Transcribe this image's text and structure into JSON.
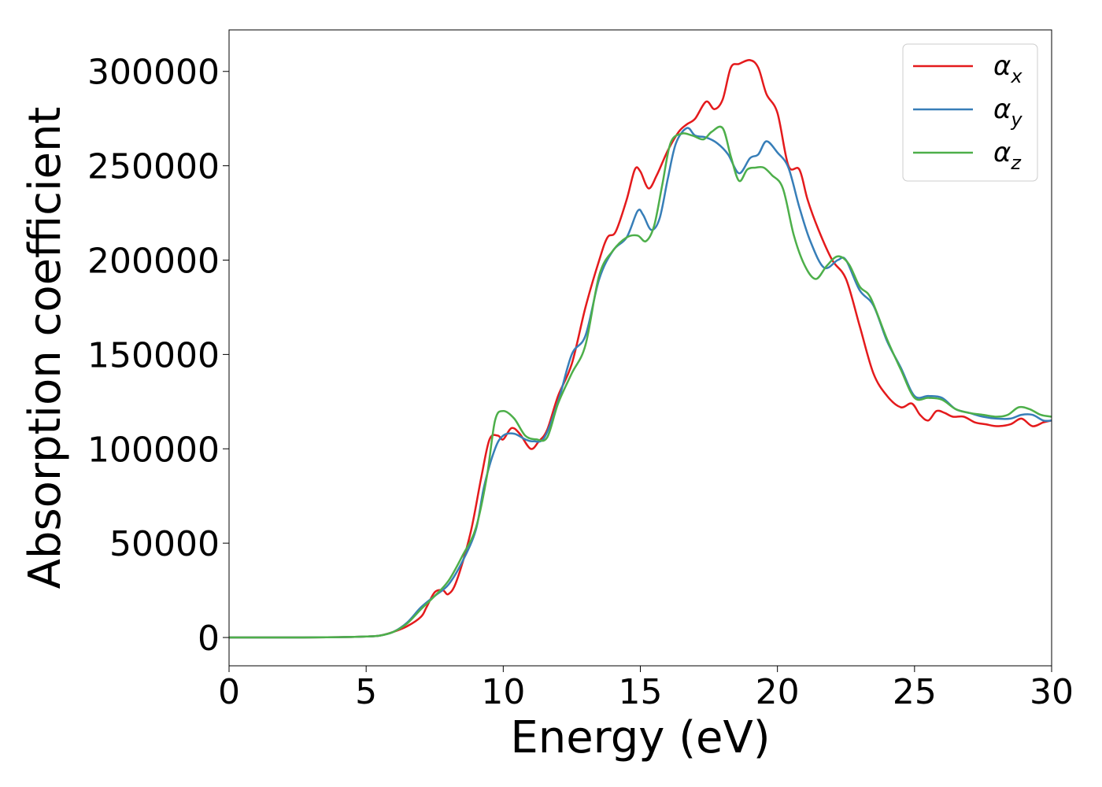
{
  "chart_data": {
    "type": "line",
    "title": "",
    "xlabel": "Energy (eV)",
    "ylabel": "Absorption coefficient",
    "xlim": [
      0,
      30
    ],
    "ylim": [
      -15000,
      322000
    ],
    "xticks": [
      0,
      5,
      10,
      15,
      20,
      25,
      30
    ],
    "xtick_labels": [
      "0",
      "5",
      "10",
      "15",
      "20",
      "25",
      "30"
    ],
    "yticks": [
      0,
      50000,
      100000,
      150000,
      200000,
      250000,
      300000
    ],
    "ytick_labels": [
      "0",
      "50000",
      "100000",
      "150000",
      "200000",
      "250000",
      "300000"
    ],
    "grid": false,
    "legend_position": "top-right",
    "series": [
      {
        "name": "α_x",
        "legend_base": "α",
        "legend_sub": "x",
        "color": "#e41a1c",
        "x": [
          0,
          2,
          4,
          5,
          5.5,
          6,
          6.5,
          7,
          7.2,
          7.5,
          7.8,
          8.0,
          8.3,
          8.8,
          9.2,
          9.5,
          9.8,
          10.0,
          10.3,
          10.6,
          11.0,
          11.3,
          11.6,
          12.0,
          12.5,
          13.0,
          13.5,
          13.8,
          14.1,
          14.5,
          14.8,
          15.0,
          15.3,
          15.6,
          16.0,
          16.4,
          16.7,
          17.0,
          17.4,
          17.7,
          18.0,
          18.3,
          18.6,
          19.0,
          19.3,
          19.6,
          20.0,
          20.4,
          20.8,
          21.1,
          21.5,
          22.0,
          22.5,
          23.0,
          23.5,
          24.0,
          24.5,
          24.9,
          25.2,
          25.5,
          25.8,
          26.1,
          26.4,
          26.8,
          27.2,
          27.6,
          28.0,
          28.5,
          28.9,
          29.3,
          29.7,
          30.0
        ],
        "y": [
          0,
          0,
          200,
          500,
          1000,
          3000,
          6000,
          11000,
          16000,
          24000,
          25000,
          23000,
          30000,
          55000,
          85000,
          105000,
          107000,
          105000,
          111000,
          108000,
          100000,
          104000,
          110000,
          128000,
          145000,
          175000,
          200000,
          212000,
          215000,
          232000,
          248000,
          247000,
          238000,
          245000,
          258000,
          268000,
          272000,
          275000,
          284000,
          280000,
          285000,
          302000,
          304000,
          306000,
          302000,
          288000,
          278000,
          250000,
          248000,
          232000,
          216000,
          200000,
          190000,
          165000,
          140000,
          128000,
          122000,
          124000,
          118000,
          115000,
          120000,
          119000,
          117000,
          117000,
          114000,
          113000,
          112000,
          113000,
          116000,
          112000,
          114000,
          115000
        ]
      },
      {
        "name": "α_y",
        "legend_base": "α",
        "legend_sub": "y",
        "color": "#377eb8",
        "x": [
          0,
          2,
          4,
          5,
          5.5,
          6,
          6.5,
          7,
          7.5,
          8.0,
          8.5,
          9.0,
          9.3,
          9.7,
          10.0,
          10.4,
          10.8,
          11.1,
          11.5,
          12.0,
          12.5,
          13.0,
          13.5,
          14.0,
          14.5,
          14.9,
          15.1,
          15.4,
          15.7,
          16.0,
          16.3,
          16.7,
          17.0,
          17.4,
          17.8,
          18.2,
          18.6,
          19.0,
          19.3,
          19.6,
          20.0,
          20.4,
          20.8,
          21.2,
          21.7,
          22.2,
          22.5,
          23.0,
          23.5,
          24.0,
          24.5,
          25.0,
          25.5,
          26.0,
          26.5,
          27.0,
          27.5,
          28.0,
          28.5,
          28.9,
          29.3,
          29.7,
          30.0
        ],
        "y": [
          0,
          0,
          200,
          500,
          1000,
          3000,
          8000,
          16000,
          22000,
          28000,
          40000,
          57000,
          80000,
          100000,
          107000,
          108000,
          105000,
          104000,
          106000,
          125000,
          150000,
          160000,
          190000,
          205000,
          212000,
          226000,
          224000,
          216000,
          222000,
          243000,
          262000,
          270000,
          266000,
          265000,
          262000,
          256000,
          246000,
          254000,
          256000,
          263000,
          257000,
          249000,
          228000,
          210000,
          196000,
          200000,
          200000,
          184000,
          176000,
          157000,
          143000,
          128000,
          128000,
          127000,
          121000,
          119000,
          117000,
          116000,
          116000,
          118000,
          118000,
          115000,
          115000
        ]
      },
      {
        "name": "α_z",
        "legend_base": "α",
        "legend_sub": "z",
        "color": "#4daf4a",
        "x": [
          0,
          2,
          4,
          5,
          5.5,
          6,
          6.5,
          7,
          7.5,
          8.0,
          8.5,
          9.0,
          9.4,
          9.7,
          10.0,
          10.4,
          10.8,
          11.2,
          11.6,
          12.0,
          12.5,
          13.0,
          13.5,
          14.0,
          14.5,
          14.9,
          15.2,
          15.5,
          15.8,
          16.1,
          16.5,
          16.9,
          17.3,
          17.6,
          18.0,
          18.3,
          18.6,
          18.9,
          19.2,
          19.5,
          19.8,
          20.2,
          20.6,
          21.0,
          21.4,
          21.8,
          22.2,
          22.6,
          23.0,
          23.4,
          24.0,
          24.5,
          25.0,
          25.5,
          26.0,
          26.5,
          27.0,
          27.5,
          28.0,
          28.4,
          28.8,
          29.2,
          29.6,
          30.0
        ],
        "y": [
          0,
          0,
          200,
          500,
          1000,
          3000,
          7500,
          15000,
          22000,
          30000,
          43000,
          58000,
          85000,
          115000,
          120000,
          116000,
          107000,
          105000,
          106000,
          124000,
          140000,
          155000,
          192000,
          205000,
          212000,
          213000,
          210000,
          218000,
          240000,
          262000,
          267000,
          266000,
          264000,
          268000,
          270000,
          255000,
          242000,
          248000,
          249000,
          249000,
          245000,
          238000,
          213000,
          197000,
          190000,
          197000,
          202000,
          198000,
          186000,
          180000,
          158000,
          142000,
          127000,
          127000,
          126000,
          121000,
          119000,
          118000,
          117000,
          118000,
          122000,
          121000,
          118000,
          117000
        ]
      }
    ]
  }
}
